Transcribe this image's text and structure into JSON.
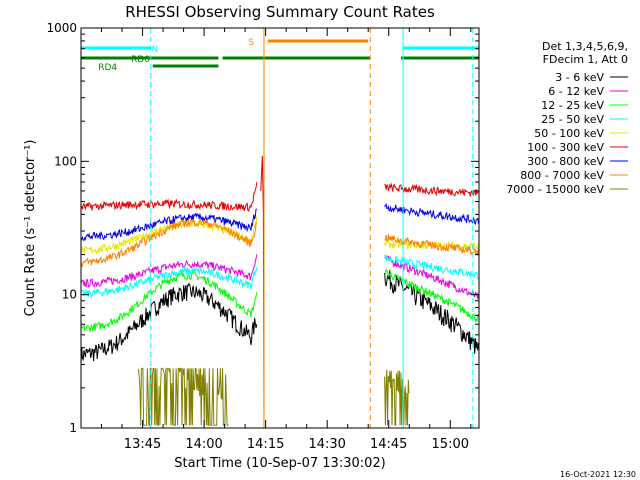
{
  "chart_data": {
    "type": "line",
    "title": "RHESSI Observing Summary Count Rates",
    "xlabel": "Start Time (10-Sep-07 13:30:02)",
    "ylabel": "Count Rate (s⁻¹ detector⁻¹)",
    "yscale": "log",
    "ylim": [
      1,
      1000
    ],
    "xlim_min": [
      0,
      97
    ],
    "x_ticks": [
      {
        "t": 15,
        "label": "13:45"
      },
      {
        "t": 30,
        "label": "14:00"
      },
      {
        "t": 45,
        "label": "14:15"
      },
      {
        "t": 60,
        "label": "14:30"
      },
      {
        "t": 75,
        "label": "14:45"
      },
      {
        "t": 90,
        "label": "15:00"
      }
    ],
    "y_ticks": [
      {
        "v": 1,
        "label": "1"
      },
      {
        "v": 10,
        "label": "10"
      },
      {
        "v": 100,
        "label": "100"
      },
      {
        "v": 1000,
        "label": "1000"
      }
    ],
    "legend": {
      "placement": "right",
      "header": [
        "Det 1,3,4,5,6,9,",
        "FDecim 1, Att 0"
      ]
    },
    "series": [
      {
        "name": "3 - 6 keV",
        "color": "#000000",
        "day1": {
          "start": 0,
          "end": 43,
          "base": 3.5,
          "peak": 10.5,
          "pc": 26,
          "w": 12
        },
        "day2": {
          "start": 74,
          "end": 97,
          "base": 14,
          "tail": 3.8
        }
      },
      {
        "name": "6 - 12 keV",
        "color": "#e600e6",
        "day1": {
          "start": 0,
          "end": 43,
          "base": 12,
          "peak": 17,
          "pc": 27,
          "w": 14
        },
        "day2": {
          "start": 74,
          "end": 97,
          "base": 19,
          "tail": 9.5
        }
      },
      {
        "name": "12 - 25 keV",
        "color": "#00ff00",
        "day1": {
          "start": 0,
          "end": 43,
          "base": 5.5,
          "peak": 14,
          "pc": 26,
          "w": 12
        },
        "day2": {
          "start": 74,
          "end": 97,
          "base": 15,
          "tail": 6.5
        }
      },
      {
        "name": "25 - 50 keV",
        "color": "#00ffff",
        "day1": {
          "start": 0,
          "end": 43,
          "base": 10,
          "peak": 15,
          "pc": 27,
          "w": 14
        },
        "day2": {
          "start": 74,
          "end": 97,
          "base": 19,
          "tail": 14
        }
      },
      {
        "name": "50 - 100 keV",
        "color": "#e6e600",
        "day1": {
          "start": 0,
          "end": 43,
          "base": 21,
          "peak": 34,
          "pc": 27,
          "w": 14
        },
        "day2": {
          "start": 74,
          "end": 97,
          "base": 24,
          "tail": 23
        }
      },
      {
        "name": "100 - 300 keV",
        "color": "#e60000",
        "day1": {
          "start": 0,
          "end": 43,
          "base": 44,
          "peak": 48,
          "pc": 20,
          "w": 20
        },
        "day2": {
          "start": 74,
          "end": 97,
          "base": 64,
          "tail": 58
        }
      },
      {
        "name": "300 - 800 keV",
        "color": "#0000e6",
        "day1": {
          "start": 0,
          "end": 43,
          "base": 27,
          "peak": 38,
          "pc": 28,
          "w": 14
        },
        "day2": {
          "start": 74,
          "end": 97,
          "base": 46,
          "tail": 36
        }
      },
      {
        "name": "800 - 7000 keV",
        "color": "#ff8000",
        "day1": {
          "start": 0,
          "end": 43,
          "base": 17,
          "peak": 35,
          "pc": 28,
          "w": 14
        },
        "day2": {
          "start": 74,
          "end": 97,
          "base": 27,
          "tail": 21
        }
      },
      {
        "name": "7000 - 15000 keV",
        "color": "#808000",
        "day1": {
          "start": 14,
          "end": 36,
          "base": 2.2,
          "peak": 2.8,
          "pc": 25,
          "w": 10
        },
        "day2": {
          "start": 74,
          "end": 80,
          "base": 2.6,
          "tail": 2.3
        }
      }
    ],
    "flare_spike": {
      "t": 44.2,
      "peak": 110
    },
    "markers": [
      {
        "t": 0,
        "color": "#00ffff",
        "style": "solid"
      },
      {
        "t": 17,
        "color": "#00ffff",
        "style": "dashed"
      },
      {
        "t": 44.6,
        "color": "#ff8000",
        "style": "solid"
      },
      {
        "t": 70.5,
        "color": "#ff8000",
        "style": "dashed"
      },
      {
        "t": 78.5,
        "color": "#00ffff",
        "style": "solid"
      },
      {
        "t": 95.5,
        "color": "#00ffff",
        "style": "dashed"
      }
    ],
    "state_bars": [
      {
        "label": "N",
        "color": "#00ffff",
        "level": 1,
        "segments": [
          [
            0,
            17
          ],
          [
            78.5,
            97
          ]
        ],
        "label_t": 18
      },
      {
        "label": "S",
        "color": "#ff8000",
        "level": 0,
        "segments": [
          [
            45.5,
            70
          ]
        ],
        "label_t": 41.5
      },
      {
        "label": "RD0",
        "color": "#008000",
        "level": 2,
        "segments": [
          [
            0,
            33.5
          ],
          [
            34.5,
            70.5
          ],
          [
            78,
            97
          ]
        ],
        "label_t": 14.5
      },
      {
        "label": "RD4",
        "color": "#008000",
        "level": 3,
        "segments": [
          [
            17.5,
            33.5
          ]
        ],
        "label_t": 6.5
      }
    ],
    "timestamp": "16-Oct-2021 12:30"
  }
}
